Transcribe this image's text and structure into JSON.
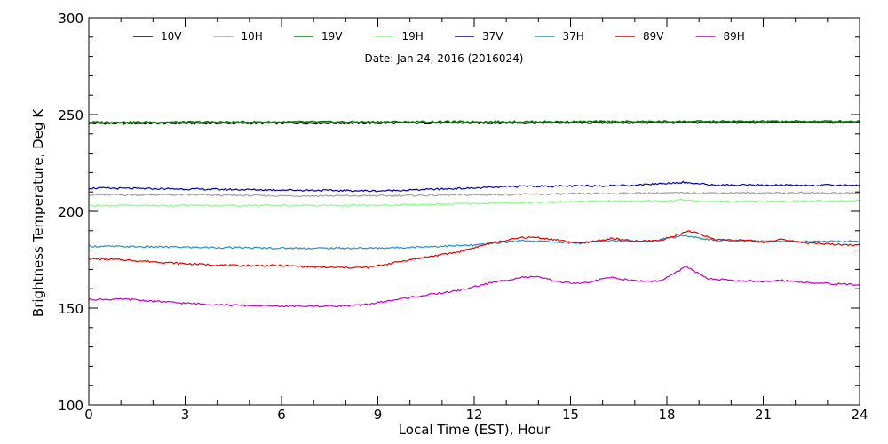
{
  "chart_data": {
    "type": "line",
    "annotation": "Date: Jan 24, 2016 (2016024)",
    "xlabel": "Local Time (EST), Hour",
    "ylabel": "Brightness Temperature, Deg K",
    "xlim": [
      0,
      24
    ],
    "ylim": [
      100,
      300
    ],
    "xticks": [
      0,
      3,
      6,
      9,
      12,
      15,
      18,
      21,
      24
    ],
    "yticks": [
      100,
      150,
      200,
      250,
      300
    ],
    "xticks_text": [
      "0",
      "3",
      "6",
      "9",
      "12",
      "15",
      "18",
      "21",
      "24"
    ],
    "yticks_text": [
      "100",
      "150",
      "200",
      "250",
      "300"
    ],
    "grid": false,
    "legend_position": "top",
    "series": [
      {
        "name": "10V",
        "color": "#000000",
        "x": [
          0,
          24
        ],
        "y": [
          245.5,
          246.0
        ]
      },
      {
        "name": "10H",
        "color": "#a0a0a0",
        "x": [
          0,
          3,
          6,
          9,
          12,
          15,
          18,
          21,
          24
        ],
        "y": [
          208.5,
          208.5,
          208.0,
          208.0,
          208.5,
          209.0,
          209.5,
          209.5,
          209.5
        ]
      },
      {
        "name": "19V",
        "color": "#008000",
        "x": [
          0,
          24
        ],
        "y": [
          246.0,
          246.5
        ]
      },
      {
        "name": "19H",
        "color": "#80ff80",
        "x": [
          0,
          3,
          6,
          9,
          12,
          15,
          18,
          18.5,
          19,
          21,
          24
        ],
        "y": [
          203.0,
          203.0,
          203.0,
          203.0,
          204.0,
          205.0,
          205.5,
          206.0,
          205.0,
          205.0,
          205.5
        ]
      },
      {
        "name": "37V",
        "color": "#0000b0",
        "x": [
          0,
          3,
          6,
          9,
          12,
          13.5,
          15,
          17,
          18.5,
          19.5,
          21,
          24
        ],
        "y": [
          212.0,
          211.5,
          211.0,
          210.5,
          212.0,
          213.0,
          213.0,
          213.5,
          215.0,
          213.5,
          213.5,
          213.5
        ]
      },
      {
        "name": "37H",
        "color": "#2090d0",
        "x": [
          0,
          3,
          6,
          9,
          12,
          13.5,
          15.3,
          16.3,
          17.5,
          18.5,
          19.5,
          21,
          24
        ],
        "y": [
          182.0,
          181.5,
          181.0,
          181.0,
          182.5,
          185.0,
          183.5,
          185.0,
          184.5,
          187.5,
          185.0,
          184.5,
          184.5
        ]
      },
      {
        "name": "89V",
        "color": "#e00000",
        "x": [
          0,
          1,
          3,
          4.5,
          6,
          7.5,
          8.7,
          10,
          11.5,
          12.5,
          13.5,
          14,
          15.3,
          16.3,
          17,
          17.8,
          18.7,
          19.5,
          20.5,
          21,
          21.5,
          22.5,
          24
        ],
        "y": [
          175.5,
          175.0,
          173.0,
          172.0,
          172.0,
          171.0,
          171.0,
          175.0,
          179.0,
          183.5,
          186.5,
          186.5,
          183.5,
          186.0,
          184.5,
          185.0,
          190.0,
          185.5,
          185.0,
          184.0,
          185.5,
          183.5,
          182.5
        ]
      },
      {
        "name": "89H",
        "color": "#c000c0",
        "x": [
          0,
          1.2,
          3,
          4.5,
          6,
          7.5,
          8.5,
          10,
          11.5,
          12.5,
          13.5,
          14,
          14.7,
          15.3,
          16.3,
          17,
          17.8,
          18.6,
          19.3,
          20.5,
          21,
          21.5,
          22.5,
          24
        ],
        "y": [
          154.5,
          154.5,
          152.5,
          151.5,
          151.0,
          151.0,
          151.5,
          155.5,
          159.0,
          163.0,
          166.0,
          166.0,
          163.5,
          162.5,
          166.0,
          164.0,
          164.0,
          171.5,
          165.0,
          164.0,
          163.5,
          164.5,
          163.0,
          162.0
        ]
      }
    ]
  }
}
